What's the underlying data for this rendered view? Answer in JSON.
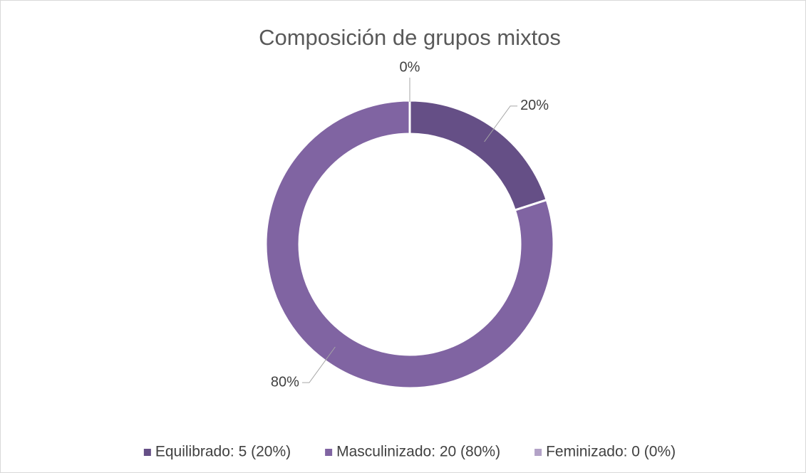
{
  "chart_data": {
    "type": "donut",
    "title": "Composición de grupos mixtos",
    "categories": [
      "Equilibrado: 5 (20%)",
      "Masculinizado: 20 (80%)",
      "Feminizado: 0 (0%)"
    ],
    "values": [
      20,
      80,
      0
    ],
    "value_labels": [
      "20%",
      "80%",
      "0%"
    ],
    "colors": [
      "#654f86",
      "#8064a2",
      "#b3a2c7"
    ],
    "legend": "bottom"
  }
}
